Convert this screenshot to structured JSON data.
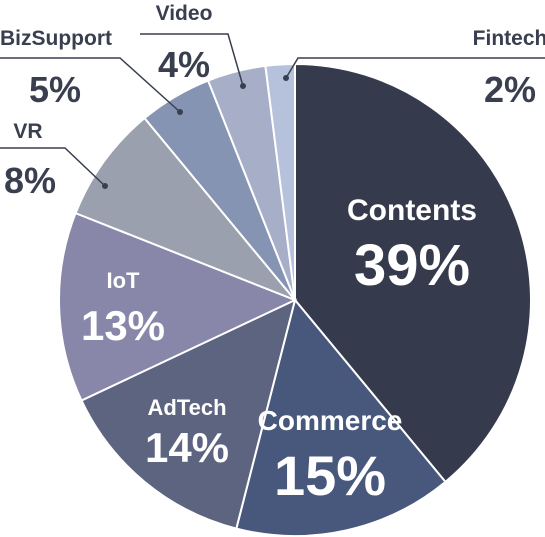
{
  "chart_data": {
    "type": "pie",
    "slices": [
      {
        "label": "Contents",
        "value": 39,
        "display": "39%",
        "color": "#363a4d"
      },
      {
        "label": "Commerce",
        "value": 15,
        "display": "15%",
        "color": "#48587c"
      },
      {
        "label": "AdTech",
        "value": 14,
        "display": "14%",
        "color": "#5d6480"
      },
      {
        "label": "IoT",
        "value": 13,
        "display": "13%",
        "color": "#8887aa"
      },
      {
        "label": "VR",
        "value": 8,
        "display": "8%",
        "color": "#9aa0ae"
      },
      {
        "label": "BizSupport",
        "value": 5,
        "display": "5%",
        "color": "#8594b3"
      },
      {
        "label": "Video",
        "value": 4,
        "display": "4%",
        "color": "#a6aec8"
      },
      {
        "label": "Fintech",
        "value": 2,
        "display": "2%",
        "color": "#b6c1dc"
      }
    ],
    "label_text_color_inside": "#ffffff",
    "label_text_color_outside": "#3a3f4f",
    "start": "12 o'clock",
    "direction": "clockwise"
  }
}
